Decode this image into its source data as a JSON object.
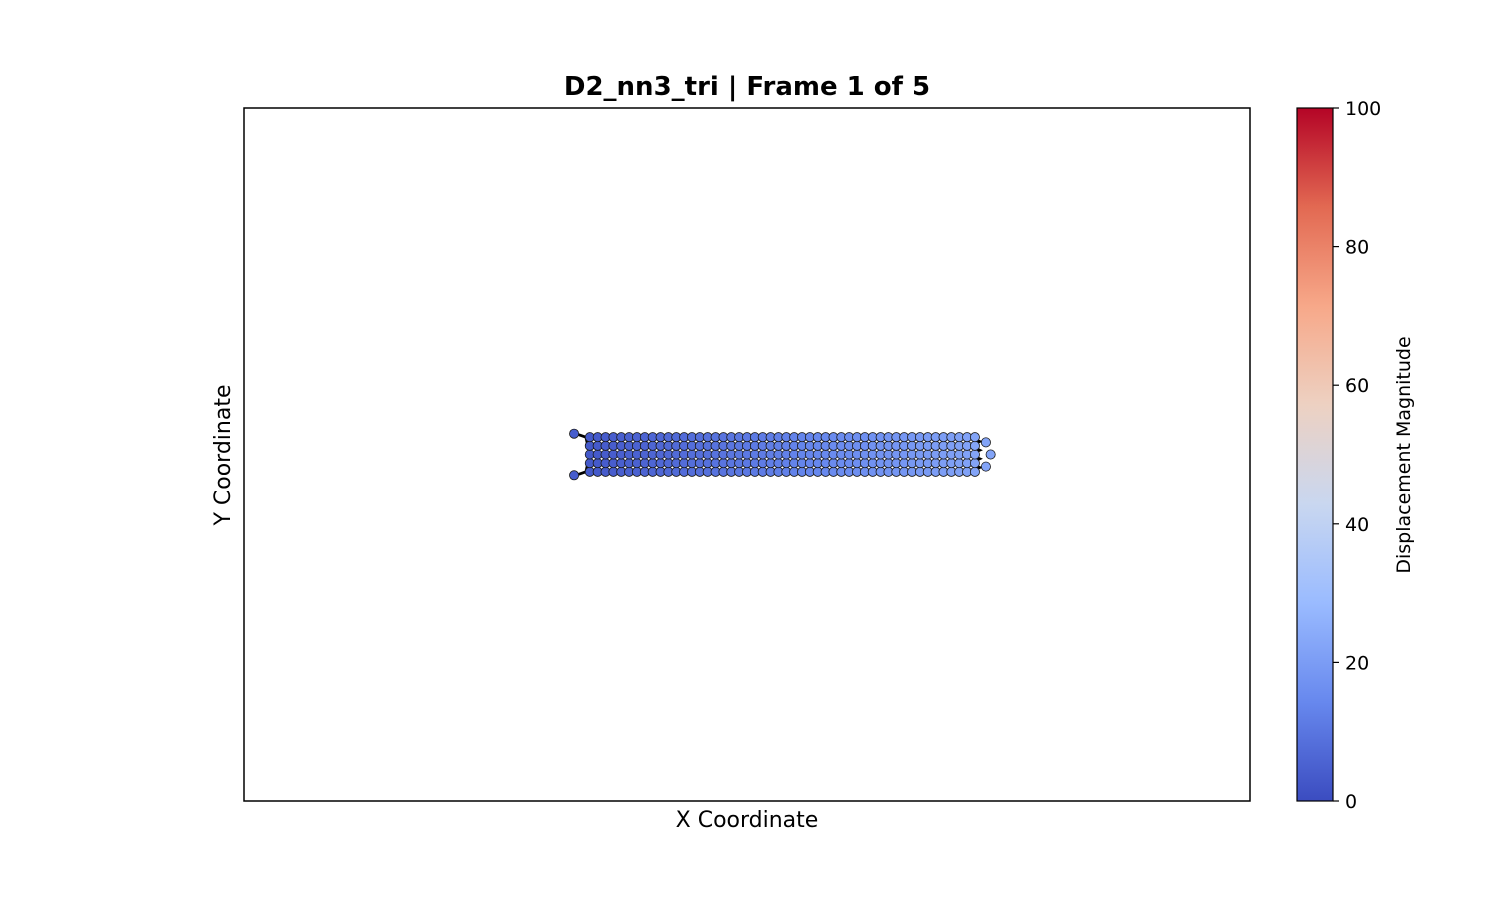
{
  "chart_data": {
    "type": "scatter",
    "title": "D2_nn3_tri  |  Frame 1 of 5",
    "xlabel": "X Coordinate",
    "ylabel": "Y Coordinate",
    "x_ticks_shown": false,
    "y_ticks_shown": false,
    "grid": false,
    "xlim": [
      -22,
      42
    ],
    "ylim": [
      -20,
      20
    ],
    "lattice": {
      "rows": 5,
      "columns": 50,
      "row_spacing": 0.5,
      "column_spacing": 0.5,
      "start_x": 0,
      "end_x": 24.5,
      "displacement_range": [
        3,
        22
      ],
      "description_of_ends": "spring connectors drawn in black at left and right ends"
    },
    "colorbar": {
      "label": "Displacement Magnitude",
      "range": [
        0,
        100
      ],
      "ticks": [
        "0",
        "20",
        "40",
        "60",
        "80",
        "100"
      ],
      "colormap": "coolwarm",
      "colormap_stops": [
        "#3b4cc0",
        "#6788ee",
        "#9abbff",
        "#c9d7f0",
        "#edd1c2",
        "#f7a889",
        "#e26952",
        "#b40426"
      ]
    },
    "marker_edge_color": "#1a1a1a",
    "connector_color": "#000000"
  }
}
